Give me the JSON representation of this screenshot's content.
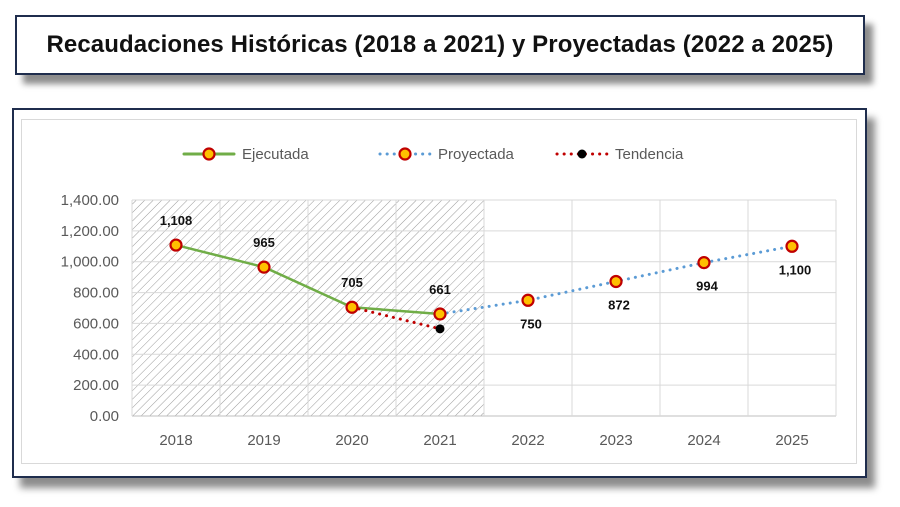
{
  "title": "Recaudaciones Históricas (2018 a 2021) y Proyectadas (2022 a 2025)",
  "chart_data": {
    "type": "line",
    "categories": [
      "2018",
      "2019",
      "2020",
      "2021",
      "2022",
      "2023",
      "2024",
      "2025"
    ],
    "ylim": [
      0,
      1400
    ],
    "y_ticks": [
      "0.00",
      "200.00",
      "400.00",
      "600.00",
      "800.00",
      "1,000.00",
      "1,200.00",
      "1,400.00"
    ],
    "grid": true,
    "legend_position": "top",
    "shaded_region": {
      "from": "2018",
      "to": "2021",
      "style": "diagonal-hatch"
    },
    "series": [
      {
        "name": "Ejecutada",
        "style": "solid",
        "color": "#70ad47",
        "points": [
          {
            "x": "2018",
            "y": 1108
          },
          {
            "x": "2019",
            "y": 965
          },
          {
            "x": "2020",
            "y": 705
          },
          {
            "x": "2021",
            "y": 661
          }
        ]
      },
      {
        "name": "Proyectada",
        "style": "dotted",
        "color": "#5b9bd5",
        "points": [
          {
            "x": "2021",
            "y": 661
          },
          {
            "x": "2022",
            "y": 750
          },
          {
            "x": "2023",
            "y": 872
          },
          {
            "x": "2024",
            "y": 994
          },
          {
            "x": "2025",
            "y": 1100
          }
        ]
      },
      {
        "name": "Tendencia",
        "style": "dotted",
        "color": "#c00000",
        "points": [
          {
            "x": "2020",
            "y": 705
          },
          {
            "x": "2021",
            "y": 565
          }
        ]
      }
    ],
    "data_labels": [
      {
        "x": "2018",
        "y": 1108,
        "text": "1,108",
        "position": "above"
      },
      {
        "x": "2019",
        "y": 965,
        "text": "965",
        "position": "above"
      },
      {
        "x": "2020",
        "y": 705,
        "text": "705",
        "position": "above"
      },
      {
        "x": "2021",
        "y": 661,
        "text": "661",
        "position": "above"
      },
      {
        "x": "2022",
        "y": 750,
        "text": "750",
        "position": "below"
      },
      {
        "x": "2023",
        "y": 872,
        "text": "872",
        "position": "below"
      },
      {
        "x": "2024",
        "y": 994,
        "text": "994",
        "position": "below"
      },
      {
        "x": "2025",
        "y": 1100,
        "text": "1,100",
        "position": "below"
      }
    ]
  },
  "colors": {
    "frame": "#1f2d4d",
    "marker_fill": "#ffc000",
    "marker_edge": "#c00000",
    "tendency_marker": "#000000"
  }
}
